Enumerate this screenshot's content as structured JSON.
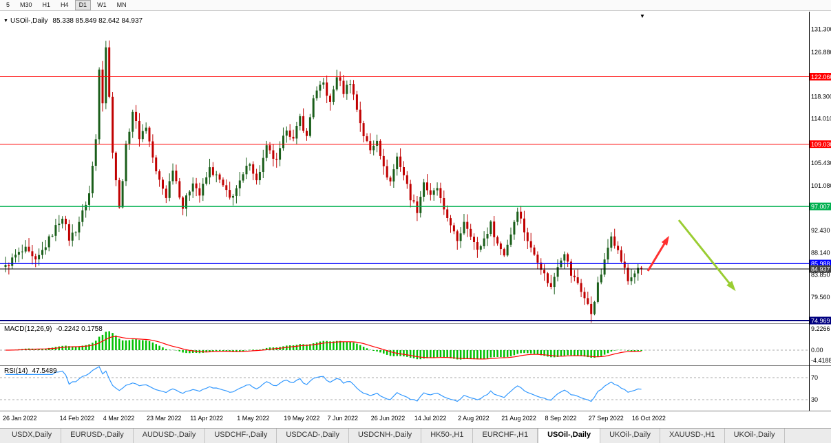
{
  "toolbar": {
    "timeframes": [
      "5",
      "M30",
      "H1",
      "H4",
      "D1",
      "W1",
      "MN"
    ],
    "active": "D1"
  },
  "chart": {
    "marker": "▼",
    "shift_marker": "▼",
    "title": "USOil-,Daily",
    "ohlc_text": "85.338 85.849 82.642 84.937"
  },
  "chart_data": {
    "type": "candlestick",
    "symbol": "USOil-",
    "timeframe": "Daily",
    "ohlc": {
      "open": 85.338,
      "high": 85.849,
      "low": 82.642,
      "close": 84.937
    },
    "ylim": [
      74.0,
      132.0
    ],
    "n_candles": 191,
    "close_anchors": [
      [
        0,
        85.3
      ],
      [
        3,
        87.5
      ],
      [
        6,
        88.6
      ],
      [
        9,
        86.2
      ],
      [
        12,
        89.5
      ],
      [
        15,
        93.0
      ],
      [
        17,
        95.2
      ],
      [
        19,
        90.8
      ],
      [
        21,
        92.5
      ],
      [
        23,
        95.8
      ],
      [
        25,
        99.5
      ],
      [
        27,
        110.0
      ],
      [
        28,
        124.0
      ],
      [
        29,
        117.5
      ],
      [
        30,
        128.0
      ],
      [
        31,
        118.0
      ],
      [
        32,
        108.0
      ],
      [
        34,
        96.5
      ],
      [
        36,
        108.5
      ],
      [
        38,
        115.5
      ],
      [
        40,
        110.5
      ],
      [
        42,
        112.5
      ],
      [
        45,
        103.5
      ],
      [
        48,
        99.0
      ],
      [
        50,
        104.5
      ],
      [
        53,
        96.8
      ],
      [
        56,
        102.0
      ],
      [
        58,
        99.2
      ],
      [
        61,
        104.3
      ],
      [
        64,
        102.0
      ],
      [
        67,
        98.5
      ],
      [
        70,
        101.5
      ],
      [
        73,
        105.8
      ],
      [
        75,
        101.8
      ],
      [
        78,
        108.3
      ],
      [
        81,
        105.5
      ],
      [
        84,
        112.3
      ],
      [
        86,
        109.8
      ],
      [
        88,
        114.2
      ],
      [
        90,
        110.3
      ],
      [
        92,
        118.2
      ],
      [
        95,
        120.8
      ],
      [
        97,
        116.8
      ],
      [
        99,
        122.3
      ],
      [
        101,
        119.2
      ],
      [
        103,
        121.2
      ],
      [
        105,
        115.8
      ],
      [
        107,
        110.8
      ],
      [
        109,
        107.8
      ],
      [
        111,
        110.2
      ],
      [
        113,
        104.3
      ],
      [
        115,
        101.8
      ],
      [
        117,
        106.6
      ],
      [
        119,
        103.2
      ],
      [
        121,
        98.8
      ],
      [
        123,
        96.3
      ],
      [
        125,
        101.8
      ],
      [
        127,
        98.8
      ],
      [
        129,
        100.6
      ],
      [
        131,
        95.8
      ],
      [
        133,
        93.8
      ],
      [
        135,
        89.8
      ],
      [
        137,
        94.3
      ],
      [
        139,
        91.8
      ],
      [
        141,
        88.3
      ],
      [
        143,
        90.8
      ],
      [
        145,
        93.6
      ],
      [
        147,
        89.8
      ],
      [
        149,
        87.8
      ],
      [
        151,
        91.8
      ],
      [
        153,
        96.6
      ],
      [
        155,
        92.3
      ],
      [
        157,
        88.8
      ],
      [
        159,
        86.8
      ],
      [
        161,
        83.8
      ],
      [
        163,
        81.3
      ],
      [
        165,
        85.8
      ],
      [
        167,
        88.3
      ],
      [
        169,
        83.8
      ],
      [
        171,
        82.3
      ],
      [
        173,
        79.3
      ],
      [
        175,
        76.4
      ],
      [
        177,
        81.8
      ],
      [
        179,
        86.3
      ],
      [
        181,
        91.8
      ],
      [
        183,
        88.3
      ],
      [
        185,
        84.8
      ],
      [
        186,
        82.6
      ],
      [
        188,
        84.3
      ],
      [
        190,
        84.937
      ]
    ],
    "x_ticks": [
      {
        "i": 0,
        "label": "26 Jan 2022"
      },
      {
        "i": 17,
        "label": "14 Feb 2022"
      },
      {
        "i": 30,
        "label": "4 Mar 2022"
      },
      {
        "i": 43,
        "label": "23 Mar 2022"
      },
      {
        "i": 56,
        "label": "11 Apr 2022"
      },
      {
        "i": 70,
        "label": "1 May 2022"
      },
      {
        "i": 84,
        "label": "19 May 2022"
      },
      {
        "i": 97,
        "label": "7 Jun 2022"
      },
      {
        "i": 110,
        "label": "26 Jun 2022"
      },
      {
        "i": 123,
        "label": "14 Jul 2022"
      },
      {
        "i": 136,
        "label": "2 Aug 2022"
      },
      {
        "i": 149,
        "label": "21 Aug 2022"
      },
      {
        "i": 162,
        "label": "8 Sep 2022"
      },
      {
        "i": 175,
        "label": "27 Sep 2022"
      },
      {
        "i": 188,
        "label": "16 Oct 2022"
      }
    ],
    "levels": [
      {
        "price": 122.06,
        "color": "#ff0000",
        "width": 1,
        "name": "resistance-line-upper"
      },
      {
        "price": 109.03,
        "color": "#ff0000",
        "width": 1,
        "name": "resistance-line-lower"
      },
      {
        "price": 97.007,
        "color": "#00b050",
        "width": 1.5,
        "name": "green-level-line"
      },
      {
        "price": 85.988,
        "color": "#0000ff",
        "width": 1.5,
        "name": "blue-level-line"
      },
      {
        "price": 84.937,
        "color": "#000000",
        "width": 1,
        "name": "current-price-line"
      },
      {
        "price": 74.969,
        "color": "#000080",
        "width": 2,
        "name": "navy-support-line"
      }
    ],
    "colors": {
      "bull": "#1a5e1a",
      "bear": "#c00000",
      "macd_hist": "#00c000",
      "macd_signal": "#ff0000",
      "rsi_line": "#3399ff",
      "grid_dash": "#aaaaaa"
    },
    "indicators": {
      "macd": {
        "label": "MACD(12,26,9)",
        "values_text": "-0.2242 0.1758",
        "axis": [
          {
            "text": "9.2266",
            "value": 9.2266
          },
          {
            "text": "0.00",
            "value": 0
          },
          {
            "text": "-4.4188",
            "value": -4.4188
          }
        ]
      },
      "rsi": {
        "label": "RSI(14)",
        "value_text": "47.5489",
        "levels": [
          {
            "text": "70",
            "value": 70
          },
          {
            "text": "30",
            "value": 30
          }
        ]
      }
    }
  },
  "price_axis": {
    "labels": [
      {
        "text": "131.300",
        "price": 131.3
      },
      {
        "text": "126.880",
        "price": 126.88
      },
      {
        "text": "122.060",
        "price": 122.06,
        "bg": "#ff0000"
      },
      {
        "text": "118.300",
        "price": 118.3
      },
      {
        "text": "114.010",
        "price": 114.01
      },
      {
        "text": "109.030",
        "price": 109.03,
        "bg": "#ff0000"
      },
      {
        "text": "105.430",
        "price": 105.43
      },
      {
        "text": "101.080",
        "price": 101.08
      },
      {
        "text": "97.007",
        "price": 97.007,
        "bg": "#00b050"
      },
      {
        "text": "92.430",
        "price": 92.43
      },
      {
        "text": "88.140",
        "price": 88.14
      },
      {
        "text": "85.988",
        "price": 85.988,
        "bg": "#0000ff"
      },
      {
        "text": "84.937",
        "price": 84.937,
        "bg": "#404040"
      },
      {
        "text": "83.850",
        "price": 83.85
      },
      {
        "text": "79.560",
        "price": 79.56
      },
      {
        "text": "74.969",
        "price": 74.969,
        "bg": "#000080"
      }
    ]
  },
  "annotations": {
    "arrows": [
      {
        "name": "bullish-arrow",
        "color": "#ff3030",
        "width": 3,
        "head": 11,
        "from": [
          941,
          394
        ],
        "to": [
          970,
          346
        ]
      },
      {
        "name": "bearish-arrow",
        "color": "#9ACD32",
        "width": 3,
        "head": 12,
        "from": [
          986,
          320
        ],
        "to": [
          1066,
          420
        ]
      }
    ]
  },
  "tabs": {
    "items": [
      {
        "label": "USDX,Daily"
      },
      {
        "label": "EURUSD-,Daily"
      },
      {
        "label": "AUDUSD-,Daily"
      },
      {
        "label": "USDCHF-,Daily"
      },
      {
        "label": "USDCAD-,Daily"
      },
      {
        "label": "USDCNH-,Daily"
      },
      {
        "label": "HK50-,H1"
      },
      {
        "label": "EURCHF-,H1"
      },
      {
        "label": "USOil-,Daily",
        "active": true
      },
      {
        "label": "UKOil-,Daily"
      },
      {
        "label": "XAUUSD-,H1"
      },
      {
        "label": "UKOil-,Daily"
      }
    ]
  }
}
